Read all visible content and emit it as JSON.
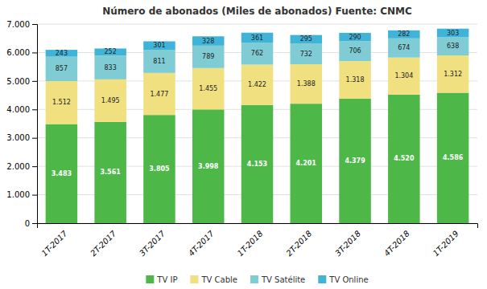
{
  "chart_data": {
    "type": "bar",
    "title": "Número de abonados (Miles de abonados) Fuente: CNMC",
    "categories": [
      "1T-2017",
      "2T-2017",
      "3T-2017",
      "4T-2017",
      "1T-2018",
      "2T-2018",
      "3T-2018",
      "4T-2018",
      "1T-2019"
    ],
    "series": [
      {
        "name": "TV IP",
        "color": "#4db848",
        "values": [
          3483,
          3561,
          3805,
          3998,
          4153,
          4201,
          4379,
          4520,
          4586
        ],
        "value_labels": [
          "3.483",
          "3.561",
          "3.805",
          "3.998",
          "4.153",
          "4.201",
          "4.379",
          "4.520",
          "4.586"
        ]
      },
      {
        "name": "TV Cable",
        "color": "#f0e080",
        "values": [
          1512,
          1495,
          1477,
          1455,
          1422,
          1388,
          1318,
          1304,
          1312
        ],
        "value_labels": [
          "1.512",
          "1.495",
          "1.477",
          "1.455",
          "1.422",
          "1.388",
          "1.318",
          "1.304",
          "1.312"
        ]
      },
      {
        "name": "TV Satélite",
        "color": "#80ccd4",
        "values": [
          857,
          833,
          811,
          789,
          762,
          732,
          706,
          674,
          638
        ],
        "value_labels": [
          "857",
          "833",
          "811",
          "789",
          "762",
          "732",
          "706",
          "674",
          "638"
        ]
      },
      {
        "name": "TV Online",
        "color": "#40b4d8",
        "values": [
          243,
          252,
          301,
          328,
          361,
          295,
          290,
          282,
          303
        ],
        "value_labels": [
          "243",
          "252",
          "301",
          "328",
          "361",
          "295",
          "290",
          "282",
          "303"
        ]
      }
    ],
    "ylim": [
      0,
      7000
    ],
    "yticks": [
      0,
      {
        "value": 1000,
        "label": "1.000"
      },
      {
        "value": 2000,
        "label": "2.000"
      },
      {
        "value": 3000,
        "label": "3.000"
      },
      {
        "value": 4000,
        "label": "4.000"
      },
      {
        "value": 5000,
        "label": "5.000"
      },
      {
        "value": 6000,
        "label": "6.000"
      },
      {
        "value": 7000,
        "label": "7.000"
      }
    ],
    "stacked": true,
    "grid": true,
    "data_labels": true,
    "legend": "bottom"
  }
}
